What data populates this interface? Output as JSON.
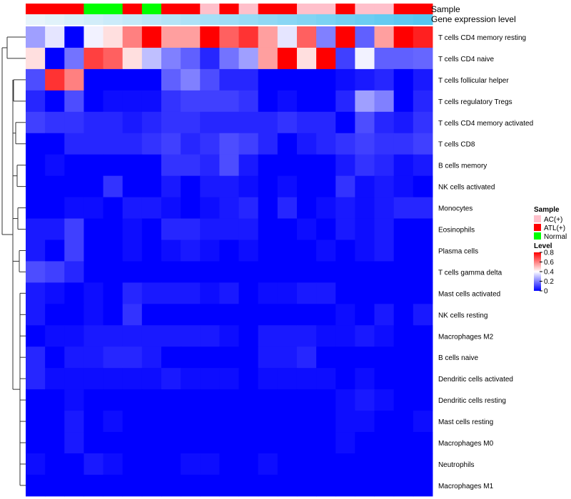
{
  "chart_data": {
    "type": "heatmap",
    "title": "",
    "annotation_tracks": [
      {
        "name": "Sample",
        "values": [
          "ATL(+)",
          "ATL(+)",
          "ATL(+)",
          "Normal",
          "Normal",
          "ATL(+)",
          "Normal",
          "ATL(+)",
          "ATL(+)",
          "AC(+)",
          "ATL(+)",
          "AC(+)",
          "ATL(+)",
          "ATL(+)",
          "AC(+)",
          "AC(+)",
          "ATL(+)",
          "AC(+)",
          "AC(+)",
          "ATL(+)",
          "ATL(+)"
        ]
      },
      {
        "name": "Gene expression level",
        "values": [
          0.0,
          0.02,
          0.04,
          0.06,
          0.08,
          0.1,
          0.12,
          0.14,
          0.16,
          0.18,
          0.2,
          0.22,
          0.24,
          0.26,
          0.28,
          0.3,
          0.32,
          0.34,
          0.36,
          0.38,
          0.4
        ]
      }
    ],
    "rows": [
      "T cells CD4 memory resting",
      "T cells CD4 naive",
      "T cells follicular helper",
      "T cells regulatory  Tregs",
      "T cells CD4 memory activated",
      "T cells CD8",
      "B cells memory",
      "NK cells activated",
      "Monocytes",
      "Eosinophils",
      "Plasma cells",
      "T cells gamma delta",
      "Mast cells activated",
      "NK cells resting",
      "Macrophages M2",
      "B cells naive",
      "Dendritic cells activated",
      "Dendritic cells resting",
      "Mast cells resting",
      "Macrophages M0",
      "Neutrophils",
      "Macrophages M1"
    ],
    "values": [
      [
        0.25,
        0.36,
        0.0,
        0.38,
        0.45,
        0.6,
        0.8,
        0.55,
        0.55,
        0.8,
        0.65,
        0.72,
        0.55,
        0.36,
        0.65,
        0.2,
        0.8,
        0.15,
        0.55,
        0.8,
        0.75
      ],
      [
        0.45,
        0.0,
        0.18,
        0.7,
        0.65,
        0.45,
        0.3,
        0.2,
        0.15,
        0.06,
        0.18,
        0.25,
        0.55,
        0.8,
        0.45,
        0.8,
        0.1,
        0.38,
        0.15,
        0.15,
        0.16
      ],
      [
        0.12,
        0.72,
        0.6,
        0.0,
        0.0,
        0.0,
        0.0,
        0.15,
        0.2,
        0.12,
        0.06,
        0.06,
        0.0,
        0.0,
        0.0,
        0.0,
        0.02,
        0.04,
        0.06,
        0.0,
        0.04
      ],
      [
        0.06,
        0.0,
        0.12,
        0.0,
        0.02,
        0.02,
        0.02,
        0.08,
        0.1,
        0.1,
        0.1,
        0.08,
        0.0,
        0.02,
        0.0,
        0.0,
        0.06,
        0.25,
        0.2,
        0.0,
        0.06
      ],
      [
        0.1,
        0.08,
        0.08,
        0.06,
        0.06,
        0.04,
        0.06,
        0.08,
        0.08,
        0.06,
        0.06,
        0.06,
        0.06,
        0.08,
        0.06,
        0.06,
        0.0,
        0.12,
        0.06,
        0.04,
        0.08
      ],
      [
        0.0,
        0.0,
        0.06,
        0.06,
        0.06,
        0.06,
        0.08,
        0.1,
        0.06,
        0.08,
        0.12,
        0.1,
        0.06,
        0.0,
        0.04,
        0.06,
        0.08,
        0.1,
        0.08,
        0.08,
        0.1
      ],
      [
        0.0,
        0.02,
        0.0,
        0.0,
        0.0,
        0.0,
        0.0,
        0.08,
        0.08,
        0.06,
        0.12,
        0.04,
        0.0,
        0.0,
        0.0,
        0.0,
        0.04,
        0.08,
        0.06,
        0.02,
        0.04
      ],
      [
        0.0,
        0.0,
        0.0,
        0.0,
        0.08,
        0.0,
        0.0,
        0.04,
        0.0,
        0.04,
        0.04,
        0.02,
        0.0,
        0.02,
        0.0,
        0.0,
        0.08,
        0.02,
        0.04,
        0.02,
        0.0
      ],
      [
        0.0,
        0.0,
        0.02,
        0.02,
        0.0,
        0.04,
        0.04,
        0.02,
        0.0,
        0.02,
        0.04,
        0.06,
        0.0,
        0.06,
        0.0,
        0.02,
        0.04,
        0.02,
        0.04,
        0.06,
        0.06
      ],
      [
        0.04,
        0.04,
        0.1,
        0.0,
        0.0,
        0.02,
        0.0,
        0.06,
        0.06,
        0.04,
        0.04,
        0.04,
        0.0,
        0.0,
        0.02,
        0.0,
        0.04,
        0.02,
        0.04,
        0.0,
        0.0
      ],
      [
        0.04,
        0.0,
        0.1,
        0.0,
        0.0,
        0.02,
        0.0,
        0.02,
        0.04,
        0.02,
        0.0,
        0.02,
        0.0,
        0.0,
        0.0,
        0.02,
        0.0,
        0.02,
        0.04,
        0.0,
        0.0
      ],
      [
        0.12,
        0.1,
        0.06,
        0.0,
        0.0,
        0.0,
        0.0,
        0.0,
        0.0,
        0.0,
        0.0,
        0.0,
        0.0,
        0.0,
        0.0,
        0.0,
        0.0,
        0.0,
        0.0,
        0.0,
        0.0
      ],
      [
        0.04,
        0.02,
        0.0,
        0.02,
        0.0,
        0.06,
        0.04,
        0.04,
        0.04,
        0.02,
        0.04,
        0.0,
        0.02,
        0.02,
        0.04,
        0.04,
        0.0,
        0.0,
        0.0,
        0.0,
        0.0
      ],
      [
        0.04,
        0.0,
        0.0,
        0.02,
        0.0,
        0.08,
        0.0,
        0.0,
        0.0,
        0.0,
        0.0,
        0.0,
        0.0,
        0.0,
        0.0,
        0.0,
        0.02,
        0.0,
        0.04,
        0.0,
        0.04
      ],
      [
        0.0,
        0.02,
        0.02,
        0.04,
        0.04,
        0.04,
        0.04,
        0.04,
        0.04,
        0.04,
        0.02,
        0.0,
        0.04,
        0.04,
        0.04,
        0.02,
        0.02,
        0.04,
        0.02,
        0.0,
        0.0
      ],
      [
        0.06,
        0.0,
        0.04,
        0.04,
        0.06,
        0.06,
        0.04,
        0.0,
        0.0,
        0.0,
        0.0,
        0.0,
        0.04,
        0.04,
        0.06,
        0.0,
        0.0,
        0.0,
        0.0,
        0.0,
        0.0
      ],
      [
        0.06,
        0.02,
        0.02,
        0.02,
        0.02,
        0.02,
        0.02,
        0.04,
        0.02,
        0.02,
        0.02,
        0.0,
        0.02,
        0.02,
        0.02,
        0.02,
        0.0,
        0.02,
        0.0,
        0.0,
        0.0
      ],
      [
        0.0,
        0.0,
        0.02,
        0.0,
        0.0,
        0.0,
        0.0,
        0.0,
        0.0,
        0.0,
        0.0,
        0.0,
        0.0,
        0.0,
        0.0,
        0.0,
        0.02,
        0.04,
        0.02,
        0.0,
        0.0
      ],
      [
        0.0,
        0.0,
        0.04,
        0.0,
        0.02,
        0.0,
        0.0,
        0.0,
        0.0,
        0.0,
        0.0,
        0.0,
        0.0,
        0.0,
        0.0,
        0.0,
        0.02,
        0.02,
        0.0,
        0.0,
        0.02
      ],
      [
        0.0,
        0.0,
        0.04,
        0.0,
        0.0,
        0.0,
        0.0,
        0.0,
        0.0,
        0.0,
        0.0,
        0.0,
        0.0,
        0.0,
        0.0,
        0.0,
        0.02,
        0.0,
        0.0,
        0.0,
        0.0
      ],
      [
        0.02,
        0.0,
        0.0,
        0.04,
        0.02,
        0.0,
        0.0,
        0.0,
        0.02,
        0.02,
        0.0,
        0.0,
        0.02,
        0.0,
        0.0,
        0.0,
        0.0,
        0.0,
        0.0,
        0.0,
        0.0
      ],
      [
        0.0,
        0.0,
        0.0,
        0.0,
        0.0,
        0.0,
        0.0,
        0.0,
        0.0,
        0.0,
        0.0,
        0.0,
        0.0,
        0.0,
        0.0,
        0.0,
        0.0,
        0.0,
        0.0,
        0.0,
        0.0
      ]
    ],
    "color_scale": {
      "min": 0,
      "max": 0.8,
      "low_color": "#0000ff",
      "mid_value": 0.4,
      "mid_color": "#ffffff",
      "high_color": "#ff0000"
    },
    "legend": {
      "sample_title": "Sample",
      "sample_entries": [
        {
          "label": "AC(+)",
          "color": "#ffc0cb"
        },
        {
          "label": "ATL(+)",
          "color": "#ff0000"
        },
        {
          "label": "Normal",
          "color": "#00ff00"
        }
      ],
      "level_title": "Level",
      "level_ticks": [
        "0.8",
        "0.6",
        "0.4",
        "0.2",
        "0"
      ],
      "level_tick_values": [
        0.8,
        0.6,
        0.4,
        0.2,
        0
      ]
    },
    "gene_level_colors": [
      "#e8f4fb",
      "#56c6f0"
    ]
  }
}
